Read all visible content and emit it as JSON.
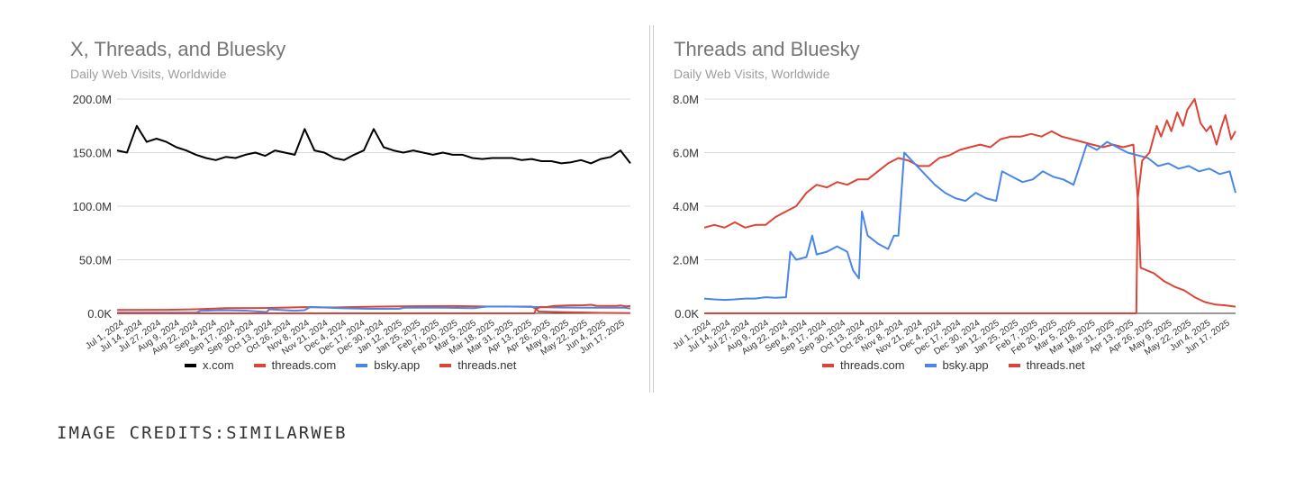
{
  "credits": "IMAGE CREDITS:SIMILARWEB",
  "chart_data": [
    {
      "type": "line",
      "title": "X, Threads, and Bluesky",
      "subtitle": "Daily Web Visits, Worldwide",
      "xlabel": "",
      "ylabel": "",
      "unit": "M",
      "ylim": [
        0,
        200
      ],
      "y_ticks": [
        {
          "v": 0,
          "label": "0.0K"
        },
        {
          "v": 50,
          "label": "50.0M"
        },
        {
          "v": 100,
          "label": "100.0M"
        },
        {
          "v": 150,
          "label": "150.0M"
        },
        {
          "v": 200,
          "label": "200.0M"
        }
      ],
      "xlim": [
        0,
        364
      ],
      "x_tick_labels": [
        "Jul 1, 2024",
        "Jul 14, 2024",
        "Jul 27, 2024",
        "Aug 9, 2024",
        "Aug 22, 2024",
        "Sep 4, 2024",
        "Sep 17, 2024",
        "Sep 30, 2024",
        "Oct 13, 2024",
        "Oct 26, 2024",
        "Nov 8, 2024",
        "Nov 21, 2024",
        "Dec 4, 2024",
        "Dec 17, 2024",
        "Dec 30, 2024",
        "Jan 12, 2025",
        "Jan 25, 2025",
        "Feb 7, 2025",
        "Feb 20, 2025",
        "Mar 5, 2025",
        "Mar 18, 2025",
        "Mar 31, 2025",
        "Apr 13, 2025",
        "Apr 26, 2025",
        "May 9, 2025",
        "May 22, 2025",
        "Jun 4, 2025",
        "Jun 17, 2025"
      ],
      "grid": true,
      "legend": "bottom",
      "series": [
        {
          "name": "x.com",
          "color": "#000000",
          "points": [
            [
              0,
              152
            ],
            [
              7,
              150
            ],
            [
              14,
              175
            ],
            [
              21,
              160
            ],
            [
              28,
              163
            ],
            [
              35,
              160
            ],
            [
              42,
              155
            ],
            [
              49,
              152
            ],
            [
              56,
              148
            ],
            [
              63,
              145
            ],
            [
              70,
              143
            ],
            [
              77,
              146
            ],
            [
              84,
              145
            ],
            [
              91,
              148
            ],
            [
              98,
              150
            ],
            [
              105,
              147
            ],
            [
              112,
              152
            ],
            [
              119,
              150
            ],
            [
              126,
              148
            ],
            [
              133,
              172
            ],
            [
              140,
              152
            ],
            [
              147,
              150
            ],
            [
              154,
              145
            ],
            [
              161,
              143
            ],
            [
              168,
              148
            ],
            [
              175,
              152
            ],
            [
              182,
              172
            ],
            [
              189,
              155
            ],
            [
              196,
              152
            ],
            [
              203,
              150
            ],
            [
              210,
              152
            ],
            [
              217,
              150
            ],
            [
              224,
              148
            ],
            [
              231,
              150
            ],
            [
              238,
              148
            ],
            [
              245,
              148
            ],
            [
              252,
              145
            ],
            [
              259,
              144
            ],
            [
              266,
              145
            ],
            [
              273,
              145
            ],
            [
              280,
              145
            ],
            [
              287,
              143
            ],
            [
              294,
              144
            ],
            [
              301,
              142
            ],
            [
              308,
              142
            ],
            [
              315,
              140
            ],
            [
              322,
              141
            ],
            [
              329,
              143
            ],
            [
              336,
              140
            ],
            [
              343,
              144
            ],
            [
              350,
              146
            ],
            [
              357,
              152
            ],
            [
              364,
              140
            ]
          ]
        },
        {
          "name": "threads.com",
          "color": "#db4437",
          "points": [
            [
              0,
              0
            ],
            [
              296,
              0
            ],
            [
              297,
              4.3
            ],
            [
              300,
              5.7
            ],
            [
              305,
              6.0
            ],
            [
              310,
              7.0
            ],
            [
              317,
              7.2
            ],
            [
              324,
              7.5
            ],
            [
              331,
              7.6
            ],
            [
              336,
              8.0
            ],
            [
              340,
              7.1
            ],
            [
              347,
              7.0
            ],
            [
              354,
              6.9
            ],
            [
              357,
              7.4
            ],
            [
              361,
              6.5
            ],
            [
              364,
              6.8
            ]
          ]
        },
        {
          "name": "bsky.app",
          "color": "#4a86e8",
          "points": [
            [
              0,
              0.55
            ],
            [
              28,
              0.55
            ],
            [
              56,
              0.6
            ],
            [
              59,
              2.3
            ],
            [
              74,
              2.9
            ],
            [
              91,
              2.5
            ],
            [
              106,
              1.3
            ],
            [
              108,
              3.8
            ],
            [
              126,
              2.4
            ],
            [
              133,
              2.9
            ],
            [
              137,
              6.0
            ],
            [
              158,
              4.8
            ],
            [
              179,
              4.2
            ],
            [
              200,
              4.2
            ],
            [
              204,
              5.3
            ],
            [
              232,
              5.3
            ],
            [
              253,
              4.8
            ],
            [
              262,
              6.3
            ],
            [
              276,
              6.4
            ],
            [
              297,
              5.9
            ],
            [
              311,
              5.5
            ],
            [
              339,
              5.3
            ],
            [
              360,
              5.3
            ],
            [
              364,
              4.5
            ]
          ]
        },
        {
          "name": "threads.net",
          "color": "#db4437",
          "points": [
            [
              0,
              3.2
            ],
            [
              35,
              3.3
            ],
            [
              56,
              3.8
            ],
            [
              77,
              4.8
            ],
            [
              105,
              5.0
            ],
            [
              133,
              5.8
            ],
            [
              154,
              5.5
            ],
            [
              182,
              6.2
            ],
            [
              210,
              6.6
            ],
            [
              238,
              6.8
            ],
            [
              266,
              6.3
            ],
            [
              294,
              6.3
            ],
            [
              297,
              4.3
            ],
            [
              299,
              1.7
            ],
            [
              315,
              1.2
            ],
            [
              329,
              0.85
            ],
            [
              343,
              0.42
            ],
            [
              364,
              0.25
            ]
          ]
        }
      ]
    },
    {
      "type": "line",
      "title": "Threads and Bluesky",
      "subtitle": "Daily Web Visits, Worldwide",
      "xlabel": "",
      "ylabel": "",
      "unit": "M",
      "ylim": [
        0,
        8
      ],
      "y_ticks": [
        {
          "v": 0,
          "label": "0.0K"
        },
        {
          "v": 2,
          "label": "2.0M"
        },
        {
          "v": 4,
          "label": "4.0M"
        },
        {
          "v": 6,
          "label": "6.0M"
        },
        {
          "v": 8,
          "label": "8.0M"
        }
      ],
      "xlim": [
        0,
        364
      ],
      "x_tick_labels": [
        "Jul 1, 2024",
        "Jul 14, 2024",
        "Jul 27, 2024",
        "Aug 9, 2024",
        "Aug 22, 2024",
        "Sep 4, 2024",
        "Sep 17, 2024",
        "Sep 30, 2024",
        "Oct 13, 2024",
        "Oct 26, 2024",
        "Nov 8, 2024",
        "Nov 21, 2024",
        "Dec 4, 2024",
        "Dec 17, 2024",
        "Dec 30, 2024",
        "Jan 12, 2025",
        "Jan 25, 2025",
        "Feb 7, 2025",
        "Feb 20, 2025",
        "Mar 5, 2025",
        "Mar 18, 2025",
        "Mar 31, 2025",
        "Apr 13, 2025",
        "Apr 26, 2025",
        "May 9, 2025",
        "May 22, 2025",
        "Jun 4, 2025",
        "Jun 17, 2025"
      ],
      "grid": true,
      "legend": "bottom",
      "series": [
        {
          "name": "threads.com",
          "color": "#db4437",
          "points": [
            [
              0,
              0
            ],
            [
              296,
              0
            ],
            [
              297,
              4.3
            ],
            [
              300,
              5.7
            ],
            [
              305,
              6.0
            ],
            [
              310,
              7.0
            ],
            [
              313,
              6.6
            ],
            [
              317,
              7.2
            ],
            [
              320,
              6.8
            ],
            [
              324,
              7.5
            ],
            [
              328,
              7.0
            ],
            [
              331,
              7.6
            ],
            [
              336,
              8.0
            ],
            [
              340,
              7.1
            ],
            [
              344,
              6.8
            ],
            [
              347,
              7.0
            ],
            [
              351,
              6.3
            ],
            [
              354,
              6.9
            ],
            [
              357,
              7.4
            ],
            [
              361,
              6.5
            ],
            [
              364,
              6.8
            ]
          ]
        },
        {
          "name": "bsky.app",
          "color": "#4a86e8",
          "points": [
            [
              0,
              0.55
            ],
            [
              7,
              0.52
            ],
            [
              14,
              0.5
            ],
            [
              21,
              0.52
            ],
            [
              28,
              0.55
            ],
            [
              35,
              0.55
            ],
            [
              42,
              0.6
            ],
            [
              49,
              0.58
            ],
            [
              56,
              0.6
            ],
            [
              59,
              2.3
            ],
            [
              63,
              2.0
            ],
            [
              70,
              2.1
            ],
            [
              74,
              2.9
            ],
            [
              77,
              2.2
            ],
            [
              84,
              2.3
            ],
            [
              91,
              2.5
            ],
            [
              98,
              2.3
            ],
            [
              102,
              1.6
            ],
            [
              106,
              1.3
            ],
            [
              108,
              3.8
            ],
            [
              112,
              2.9
            ],
            [
              119,
              2.6
            ],
            [
              126,
              2.4
            ],
            [
              130,
              2.9
            ],
            [
              133,
              2.9
            ],
            [
              137,
              6.0
            ],
            [
              144,
              5.6
            ],
            [
              151,
              5.2
            ],
            [
              158,
              4.8
            ],
            [
              165,
              4.5
            ],
            [
              172,
              4.3
            ],
            [
              179,
              4.2
            ],
            [
              186,
              4.5
            ],
            [
              193,
              4.3
            ],
            [
              200,
              4.2
            ],
            [
              204,
              5.3
            ],
            [
              211,
              5.1
            ],
            [
              218,
              4.9
            ],
            [
              225,
              5.0
            ],
            [
              232,
              5.3
            ],
            [
              239,
              5.1
            ],
            [
              246,
              5.0
            ],
            [
              253,
              4.8
            ],
            [
              262,
              6.3
            ],
            [
              269,
              6.1
            ],
            [
              276,
              6.4
            ],
            [
              283,
              6.2
            ],
            [
              290,
              6.0
            ],
            [
              297,
              5.9
            ],
            [
              304,
              5.8
            ],
            [
              311,
              5.5
            ],
            [
              318,
              5.6
            ],
            [
              325,
              5.4
            ],
            [
              332,
              5.5
            ],
            [
              339,
              5.3
            ],
            [
              346,
              5.4
            ],
            [
              353,
              5.2
            ],
            [
              360,
              5.3
            ],
            [
              364,
              4.5
            ]
          ]
        },
        {
          "name": "threads.net",
          "color": "#db4437",
          "points": [
            [
              0,
              3.2
            ],
            [
              7,
              3.3
            ],
            [
              14,
              3.2
            ],
            [
              21,
              3.4
            ],
            [
              28,
              3.2
            ],
            [
              35,
              3.3
            ],
            [
              42,
              3.3
            ],
            [
              49,
              3.6
            ],
            [
              56,
              3.8
            ],
            [
              63,
              4.0
            ],
            [
              70,
              4.5
            ],
            [
              77,
              4.8
            ],
            [
              84,
              4.7
            ],
            [
              91,
              4.9
            ],
            [
              98,
              4.8
            ],
            [
              105,
              5.0
            ],
            [
              112,
              5.0
            ],
            [
              119,
              5.3
            ],
            [
              126,
              5.6
            ],
            [
              133,
              5.8
            ],
            [
              140,
              5.7
            ],
            [
              147,
              5.5
            ],
            [
              154,
              5.5
            ],
            [
              161,
              5.8
            ],
            [
              168,
              5.9
            ],
            [
              175,
              6.1
            ],
            [
              182,
              6.2
            ],
            [
              189,
              6.3
            ],
            [
              196,
              6.2
            ],
            [
              203,
              6.5
            ],
            [
              210,
              6.6
            ],
            [
              217,
              6.6
            ],
            [
              224,
              6.7
            ],
            [
              231,
              6.6
            ],
            [
              238,
              6.8
            ],
            [
              245,
              6.6
            ],
            [
              252,
              6.5
            ],
            [
              259,
              6.4
            ],
            [
              266,
              6.3
            ],
            [
              273,
              6.2
            ],
            [
              280,
              6.3
            ],
            [
              287,
              6.2
            ],
            [
              294,
              6.3
            ],
            [
              297,
              4.3
            ],
            [
              299,
              1.7
            ],
            [
              308,
              1.5
            ],
            [
              315,
              1.2
            ],
            [
              322,
              1.0
            ],
            [
              329,
              0.85
            ],
            [
              336,
              0.6
            ],
            [
              343,
              0.42
            ],
            [
              350,
              0.33
            ],
            [
              357,
              0.3
            ],
            [
              364,
              0.25
            ]
          ]
        }
      ]
    }
  ]
}
